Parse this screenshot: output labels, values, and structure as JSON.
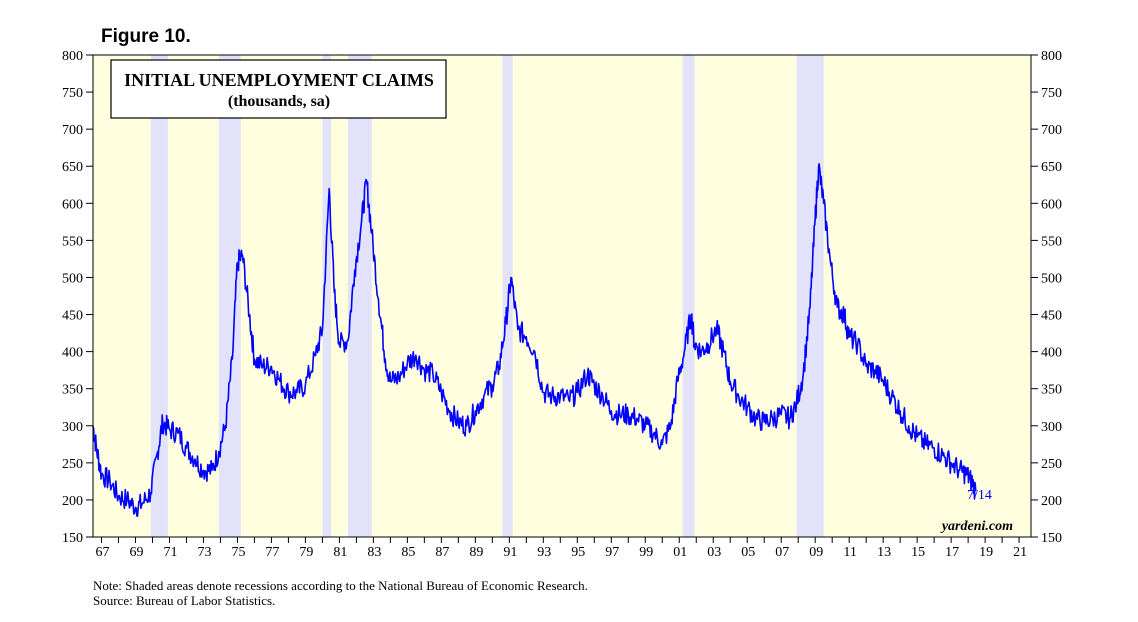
{
  "figure_label": "Figure 10.",
  "note_line1": "Note: Shaded areas denote recessions according to the National Bureau of Economic Research.",
  "note_line2": "Source: Bureau of Labor Statistics.",
  "colors": {
    "plot_background": "#FFFFE0",
    "recession_shade": "#E2E2FA",
    "series_line": "#0000FF",
    "end_label": "#0000FF",
    "axis": "#000000"
  },
  "chart_data": {
    "type": "line",
    "title": "INITIAL UNEMPLOYMENT CLAIMS",
    "subtitle": "(thousands, sa)",
    "watermark": "yardeni.com",
    "end_label": "7/14",
    "xlim": [
      1966.5,
      2021.7
    ],
    "ylim": [
      150,
      800
    ],
    "y_ticks": [
      150,
      200,
      250,
      300,
      350,
      400,
      450,
      500,
      550,
      600,
      650,
      700,
      750,
      800
    ],
    "x_tick_labels": [
      "67",
      "69",
      "71",
      "73",
      "75",
      "77",
      "79",
      "81",
      "83",
      "85",
      "87",
      "89",
      "91",
      "93",
      "95",
      "97",
      "99",
      "01",
      "03",
      "05",
      "07",
      "09",
      "11",
      "13",
      "15",
      "17",
      "19",
      "21"
    ],
    "x_tick_years": [
      1967,
      1969,
      1971,
      1973,
      1975,
      1977,
      1979,
      1981,
      1983,
      1985,
      1987,
      1989,
      1991,
      1993,
      1995,
      1997,
      1999,
      2001,
      2003,
      2005,
      2007,
      2009,
      2011,
      2013,
      2015,
      2017,
      2019,
      2021
    ],
    "recessions": [
      [
        1969.9,
        1970.9
      ],
      [
        1973.9,
        1975.2
      ],
      [
        1980.0,
        1980.5
      ],
      [
        1981.5,
        1982.9
      ],
      [
        1990.6,
        1991.2
      ],
      [
        2001.2,
        2001.9
      ],
      [
        2007.9,
        2009.5
      ]
    ],
    "grid": false,
    "series": [
      {
        "values": [
          [
            1966.5,
            300
          ],
          [
            1966.7,
            270
          ],
          [
            1967.0,
            235
          ],
          [
            1967.5,
            225
          ],
          [
            1968.0,
            205
          ],
          [
            1968.5,
            200
          ],
          [
            1969.0,
            190
          ],
          [
            1969.4,
            195
          ],
          [
            1969.9,
            210
          ],
          [
            1970.3,
            265
          ],
          [
            1970.6,
            305
          ],
          [
            1971.0,
            295
          ],
          [
            1971.5,
            290
          ],
          [
            1972.0,
            270
          ],
          [
            1972.5,
            255
          ],
          [
            1973.0,
            240
          ],
          [
            1973.5,
            240
          ],
          [
            1973.9,
            265
          ],
          [
            1974.3,
            300
          ],
          [
            1974.7,
            390
          ],
          [
            1975.0,
            520
          ],
          [
            1975.3,
            530
          ],
          [
            1975.7,
            450
          ],
          [
            1976.0,
            390
          ],
          [
            1976.5,
            380
          ],
          [
            1977.0,
            380
          ],
          [
            1977.5,
            360
          ],
          [
            1978.0,
            345
          ],
          [
            1978.5,
            345
          ],
          [
            1979.0,
            355
          ],
          [
            1979.6,
            395
          ],
          [
            1980.0,
            430
          ],
          [
            1980.4,
            620
          ],
          [
            1980.7,
            480
          ],
          [
            1981.0,
            410
          ],
          [
            1981.5,
            415
          ],
          [
            1981.9,
            510
          ],
          [
            1982.3,
            575
          ],
          [
            1982.6,
            630
          ],
          [
            1982.9,
            560
          ],
          [
            1983.3,
            470
          ],
          [
            1983.7,
            390
          ],
          [
            1984.0,
            360
          ],
          [
            1984.5,
            365
          ],
          [
            1985.0,
            385
          ],
          [
            1985.5,
            395
          ],
          [
            1986.0,
            375
          ],
          [
            1986.5,
            370
          ],
          [
            1987.0,
            345
          ],
          [
            1987.5,
            320
          ],
          [
            1988.0,
            305
          ],
          [
            1988.5,
            300
          ],
          [
            1989.0,
            320
          ],
          [
            1989.5,
            340
          ],
          [
            1990.0,
            355
          ],
          [
            1990.4,
            380
          ],
          [
            1990.8,
            440
          ],
          [
            1991.1,
            500
          ],
          [
            1991.5,
            430
          ],
          [
            1992.0,
            420
          ],
          [
            1992.5,
            400
          ],
          [
            1993.0,
            345
          ],
          [
            1993.5,
            340
          ],
          [
            1994.0,
            340
          ],
          [
            1994.5,
            335
          ],
          [
            1995.0,
            345
          ],
          [
            1995.6,
            370
          ],
          [
            1996.0,
            355
          ],
          [
            1996.5,
            340
          ],
          [
            1997.0,
            320
          ],
          [
            1997.5,
            315
          ],
          [
            1998.0,
            315
          ],
          [
            1998.5,
            310
          ],
          [
            1999.0,
            300
          ],
          [
            1999.5,
            290
          ],
          [
            2000.0,
            275
          ],
          [
            2000.5,
            300
          ],
          [
            2000.9,
            360
          ],
          [
            2001.3,
            400
          ],
          [
            2001.7,
            450
          ],
          [
            2001.9,
            410
          ],
          [
            2002.3,
            400
          ],
          [
            2002.7,
            410
          ],
          [
            2003.2,
            430
          ],
          [
            2003.6,
            400
          ],
          [
            2004.0,
            360
          ],
          [
            2004.5,
            340
          ],
          [
            2005.0,
            325
          ],
          [
            2005.5,
            310
          ],
          [
            2006.0,
            305
          ],
          [
            2006.5,
            310
          ],
          [
            2007.0,
            315
          ],
          [
            2007.5,
            310
          ],
          [
            2007.9,
            330
          ],
          [
            2008.3,
            370
          ],
          [
            2008.7,
            460
          ],
          [
            2009.0,
            580
          ],
          [
            2009.2,
            650
          ],
          [
            2009.5,
            600
          ],
          [
            2009.9,
            520
          ],
          [
            2010.3,
            460
          ],
          [
            2010.7,
            450
          ],
          [
            2011.0,
            420
          ],
          [
            2011.5,
            410
          ],
          [
            2012.0,
            380
          ],
          [
            2012.5,
            375
          ],
          [
            2013.0,
            360
          ],
          [
            2013.5,
            340
          ],
          [
            2014.0,
            320
          ],
          [
            2014.5,
            300
          ],
          [
            2015.0,
            285
          ],
          [
            2015.5,
            275
          ],
          [
            2016.0,
            270
          ],
          [
            2016.5,
            260
          ],
          [
            2017.0,
            250
          ],
          [
            2017.5,
            240
          ],
          [
            2017.9,
            235
          ],
          [
            2018.2,
            225
          ],
          [
            2018.45,
            212
          ]
        ]
      }
    ]
  }
}
